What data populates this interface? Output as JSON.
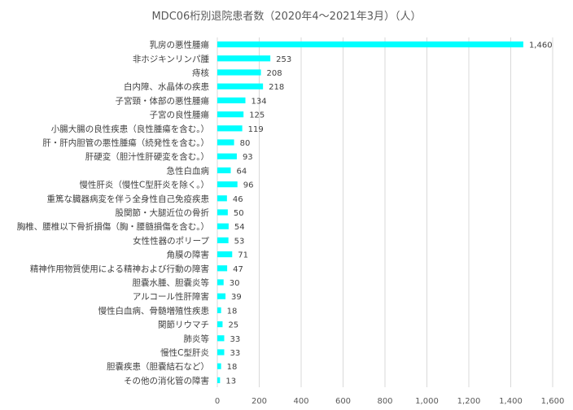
{
  "chart_data": {
    "type": "bar",
    "orientation": "horizontal",
    "title": "MDC06桁別退院患者数（2020年4～2021年3月）（人）",
    "categories": [
      "乳房の悪性腫瘍",
      "非ホジキンリンパ腫",
      "痔核",
      "白内障、水晶体の疾患",
      "子宮頸・体部の悪性腫瘍",
      "子宮の良性腫瘍",
      "小腸大腸の良性疾患（良性腫瘍を含む。）",
      "肝・肝内胆管の悪性腫瘍（続発性を含む。）",
      "肝硬変（胆汁性肝硬変を含む。）",
      "急性白血病",
      "慢性肝炎（慢性C型肝炎を除く。）",
      "重篤な臓器病変を伴う全身性自己免疫疾患",
      "股関節・大腿近位の骨折",
      "胸椎、腰椎以下骨折損傷（胸・腰髄損傷を含む。）",
      "女性性器のポリープ",
      "角膜の障害",
      "精神作用物質使用による精神および行動の障害",
      "胆嚢水腫、胆嚢炎等",
      "アルコール性肝障害",
      "慢性白血病、骨髄増殖性疾患",
      "関節リウマチ",
      "肺炎等",
      "慢性C型肝炎",
      "胆嚢疾患（胆嚢結石など）",
      "その他の消化管の障害"
    ],
    "values": [
      1460,
      253,
      208,
      218,
      134,
      125,
      119,
      80,
      93,
      64,
      96,
      46,
      50,
      54,
      53,
      71,
      47,
      30,
      39,
      18,
      25,
      33,
      33,
      18,
      13
    ],
    "value_labels": [
      "1,460",
      "253",
      "208",
      "218",
      "134",
      "125",
      "119",
      "80",
      "93",
      "64",
      "96",
      "46",
      "50",
      "54",
      "53",
      "71",
      "47",
      "30",
      "39",
      "18",
      "25",
      "33",
      "33",
      "18",
      "13"
    ],
    "xlim": [
      0,
      1600
    ],
    "x_ticks": [
      0,
      200,
      400,
      600,
      800,
      1000,
      1200,
      1400,
      1600
    ],
    "x_tick_labels": [
      "0",
      "200",
      "400",
      "600",
      "800",
      "1,000",
      "1,200",
      "1,400",
      "1,600"
    ],
    "grid": true,
    "legend": "none",
    "bar_color": "#00FFFF"
  }
}
